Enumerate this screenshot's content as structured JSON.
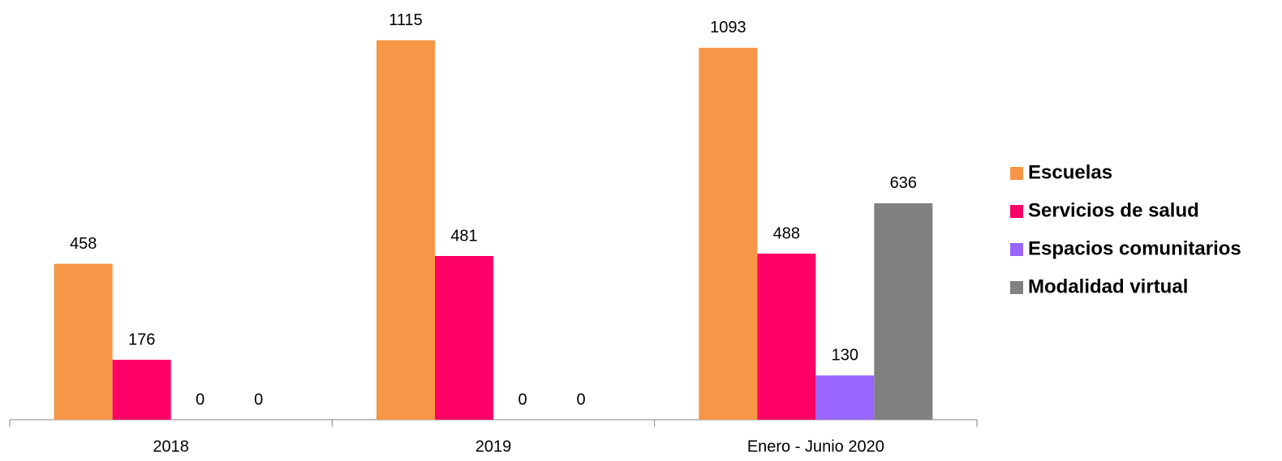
{
  "chart_data": {
    "type": "bar",
    "categories": [
      "2018",
      "2019",
      "Enero - Junio 2020"
    ],
    "series": [
      {
        "name": "Escuelas",
        "color": "#f79646",
        "values": [
          458,
          1115,
          1093
        ]
      },
      {
        "name": "Servicios de salud",
        "color": "#ff0066",
        "values": [
          176,
          481,
          488
        ]
      },
      {
        "name": "Espacios comunitarios",
        "color": "#9966ff",
        "values": [
          0,
          0,
          130
        ]
      },
      {
        "name": "Modalidad virtual",
        "color": "#808080",
        "values": [
          0,
          0,
          636
        ]
      }
    ],
    "ylim": [
      0,
      1200
    ],
    "legend": "right"
  }
}
